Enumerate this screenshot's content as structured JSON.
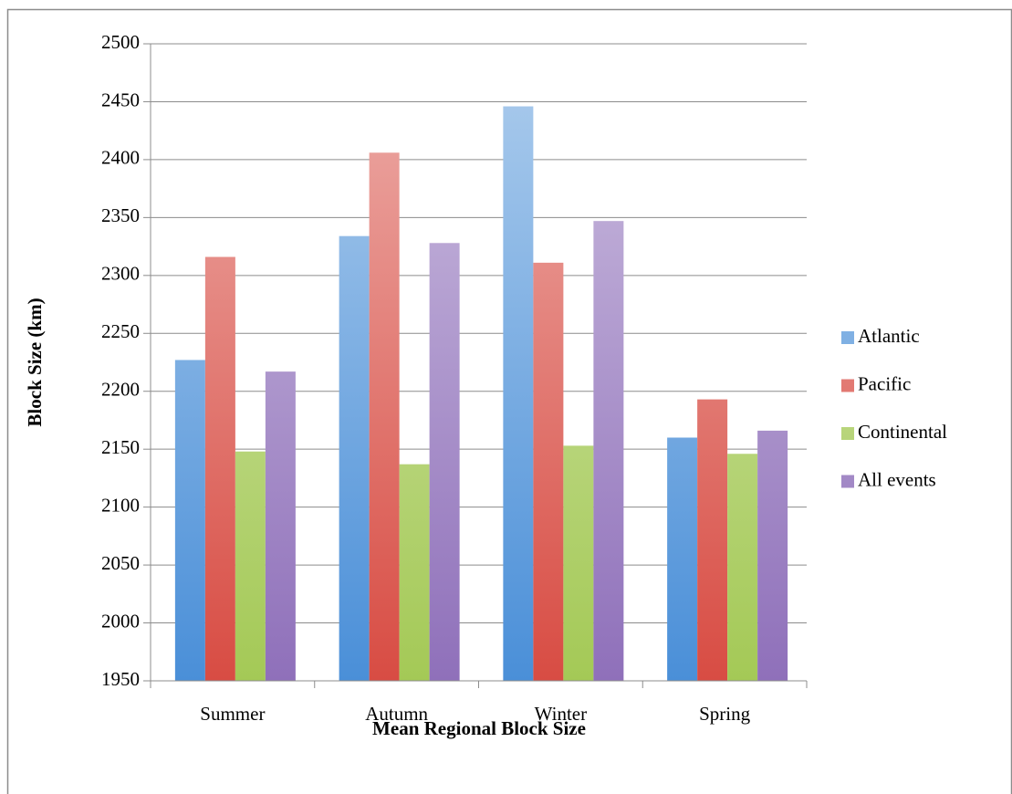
{
  "chart_data": {
    "type": "bar",
    "x_label": "Mean Regional Block Size",
    "y_label": "Block Size (km)",
    "categories": [
      "Summer",
      "Autumn",
      "Winter",
      "Spring"
    ],
    "series": [
      {
        "name": "Atlantic",
        "color": "#4a8fd8",
        "values": [
          2227,
          2334,
          2446,
          2160
        ]
      },
      {
        "name": "Pacific",
        "color": "#d84c43",
        "values": [
          2316,
          2406,
          2311,
          2193
        ]
      },
      {
        "name": "Continental",
        "color": "#a4c956",
        "values": [
          2148,
          2137,
          2153,
          2146
        ]
      },
      {
        "name": "All events",
        "color": "#8f70ba",
        "values": [
          2217,
          2328,
          2347,
          2166
        ]
      }
    ],
    "ylim": [
      1950,
      2500
    ],
    "yticks": [
      1950,
      2000,
      2050,
      2100,
      2150,
      2200,
      2250,
      2300,
      2350,
      2400,
      2450,
      2500
    ],
    "grid": true,
    "legend": "right"
  }
}
